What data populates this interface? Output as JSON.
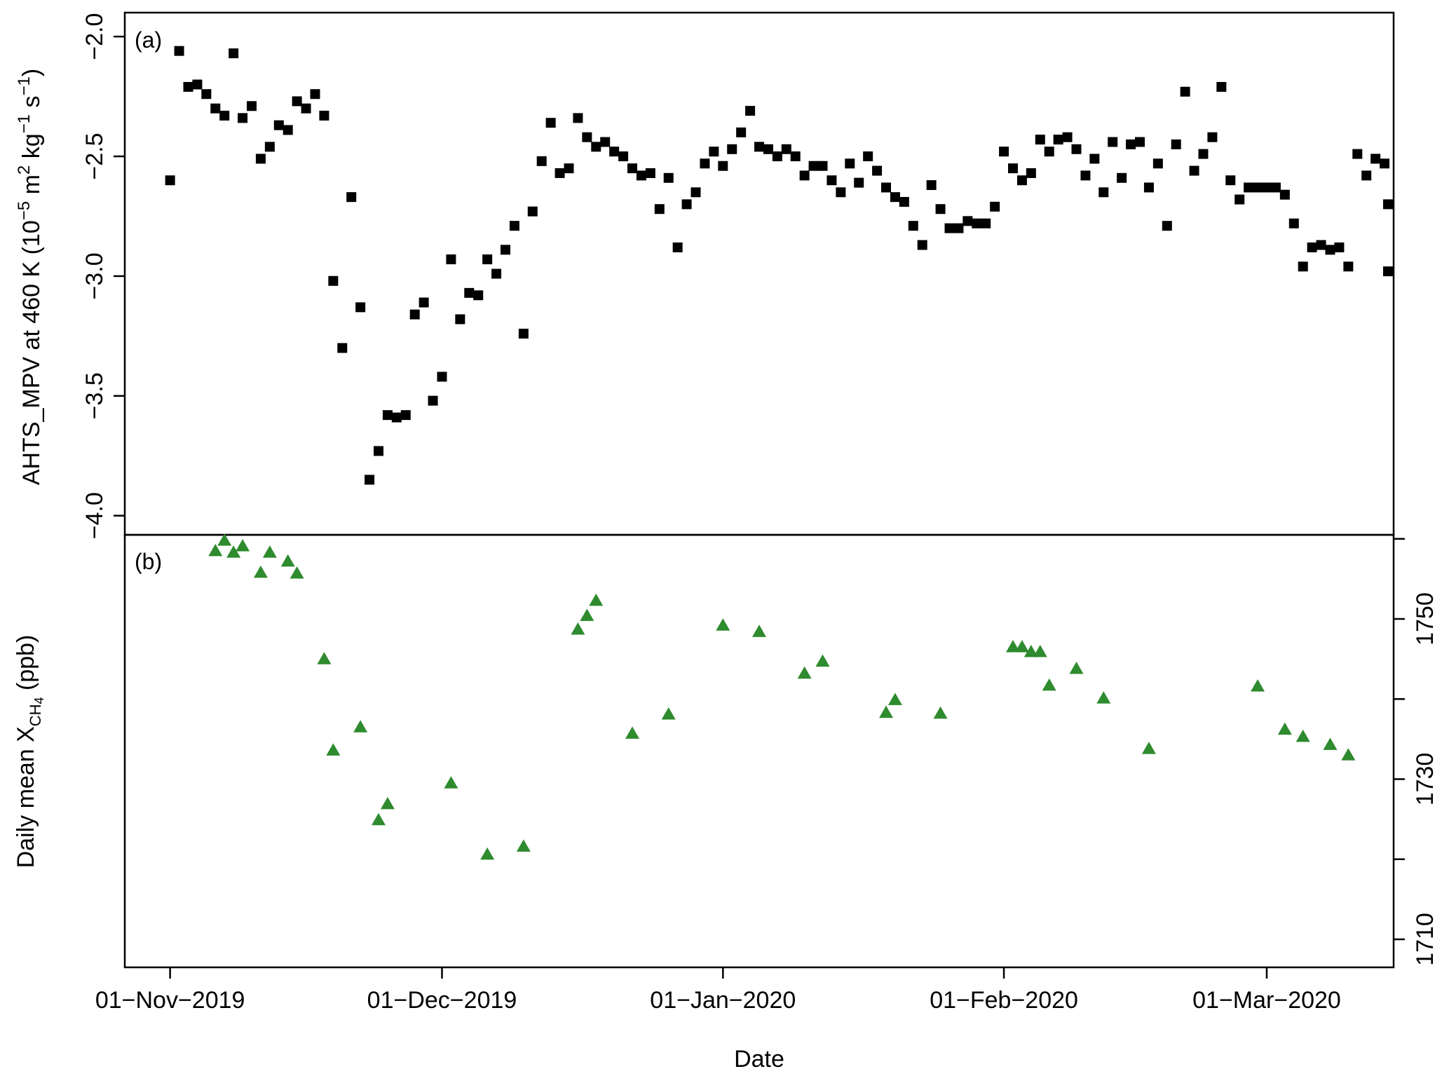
{
  "chart_data": [
    {
      "type": "scatter",
      "panel_label": "(a)",
      "ylabel": {
        "base": "AHTS_MPV at 460 K (10",
        "exp1": "−5",
        "mid1": " m",
        "exp2": "2",
        "mid2": " kg",
        "exp3": "−1",
        "mid3": " s",
        "exp4": "−1",
        "end": ")"
      },
      "ylim": [
        -4.08,
        -1.9
      ],
      "yticks": [
        -2.0,
        -2.5,
        -3.0,
        -3.5,
        -4.0
      ],
      "ytick_labels": [
        "−2.0",
        "−2.5",
        "−3.0",
        "−3.5",
        "−4.0"
      ],
      "marker": "square",
      "color": "#000000",
      "x_start": "2019-11-01",
      "series": [
        {
          "values": [
            -2.6,
            -2.06,
            -2.21,
            -2.2,
            -2.24,
            -2.3,
            -2.33,
            -2.07,
            -2.34,
            -2.29,
            -2.51,
            -2.46,
            -2.37,
            -2.39,
            -2.27,
            -2.3,
            -2.24,
            -2.33,
            -3.02,
            -3.3,
            -2.67,
            -3.13,
            -3.85,
            -3.73,
            -3.58,
            -3.59,
            -3.58,
            -3.16,
            -3.11,
            -3.52,
            -3.42,
            -2.93,
            -3.18,
            -3.07,
            -3.08,
            -2.93,
            -2.99,
            -2.89,
            -2.79,
            -3.24,
            -2.73,
            -2.52,
            -2.36,
            -2.57,
            -2.55,
            -2.34,
            -2.42,
            -2.46,
            -2.44,
            -2.48,
            -2.5,
            -2.55,
            -2.58,
            -2.57,
            -2.72,
            -2.59,
            -2.88,
            -2.7,
            -2.65,
            -2.53,
            -2.48,
            -2.54,
            -2.47,
            -2.4,
            -2.31,
            -2.46,
            -2.47,
            -2.5,
            -2.47,
            -2.5,
            -2.58,
            -2.54,
            -2.54,
            -2.6,
            -2.65,
            -2.53,
            -2.61,
            -2.5,
            -2.56,
            -2.63,
            -2.67,
            -2.69,
            -2.79,
            -2.87,
            -2.62,
            -2.72,
            -2.8,
            -2.8,
            -2.77,
            -2.78,
            -2.78,
            -2.71,
            -2.48,
            -2.55,
            -2.6,
            -2.57,
            -2.43,
            -2.48,
            -2.43,
            -2.42,
            -2.47,
            -2.58,
            -2.51,
            -2.65,
            -2.44,
            -2.59,
            -2.45,
            -2.44,
            -2.63,
            -2.53,
            -2.79,
            -2.45,
            -2.23,
            -2.56,
            -2.49,
            -2.42,
            -2.21,
            -2.6,
            -2.68,
            -2.63,
            -2.63,
            -2.63,
            -2.63,
            -2.66,
            -2.78,
            -2.96,
            -2.88,
            -2.87,
            -2.89,
            -2.88,
            -2.96,
            -2.49,
            -2.58,
            -2.51,
            -2.53,
            -2.7,
            -2.98
          ]
        }
      ]
    },
    {
      "type": "scatter",
      "panel_label": "(b)",
      "ylabel": {
        "base": "Daily mean X",
        "sub": "CH",
        "sub2": "4",
        "end": " (ppb)"
      },
      "ylim": [
        1706.5,
        1760.5
      ],
      "yticks": [
        1710,
        1730,
        1750
      ],
      "ytick_labels": [
        "1710",
        "1730",
        "1750"
      ],
      "marker": "triangle",
      "color": "#2e8b2e",
      "x": [
        5,
        6,
        7,
        8,
        10,
        11,
        13,
        14,
        17,
        18,
        21,
        23,
        24,
        31,
        35,
        39,
        45,
        46,
        47,
        51,
        55,
        61,
        65,
        70,
        72,
        79,
        80,
        85,
        93,
        94,
        95,
        96,
        97,
        100,
        103,
        108,
        120,
        123,
        125,
        128,
        130
      ],
      "values": [
        1758.5,
        1759.8,
        1758.3,
        1759.1,
        1755.8,
        1758.3,
        1757.2,
        1755.7,
        1745.0,
        1733.6,
        1736.5,
        1724.9,
        1726.9,
        1729.5,
        1720.6,
        1721.6,
        1748.7,
        1750.4,
        1752.3,
        1735.7,
        1738.1,
        1749.2,
        1748.4,
        1743.2,
        1744.7,
        1738.3,
        1739.9,
        1738.2,
        1746.5,
        1746.5,
        1745.9,
        1745.9,
        1741.7,
        1743.8,
        1740.1,
        1733.8,
        1741.6,
        1736.2,
        1735.3,
        1734.3,
        1733.0
      ],
      "note_values_panel": "plotted with this panel's own scale"
    }
  ],
  "x_axis": {
    "label": "Date",
    "ticks": [
      0,
      30,
      61,
      92,
      121
    ],
    "tick_labels": [
      "01−Nov−2019",
      "01−Dec−2019",
      "01−Jan−2020",
      "01−Feb−2020",
      "01−Mar−2020"
    ],
    "xlim": [
      -5,
      135
    ]
  }
}
